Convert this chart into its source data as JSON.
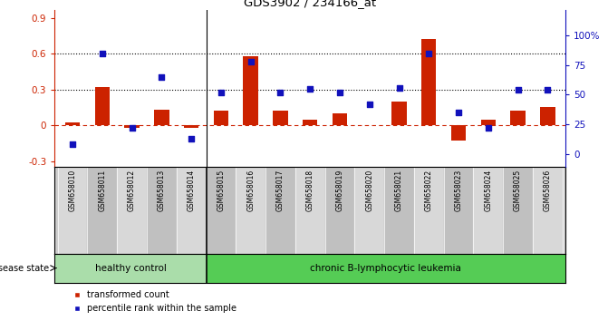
{
  "title": "GDS3902 / 234166_at",
  "samples": [
    "GSM658010",
    "GSM658011",
    "GSM658012",
    "GSM658013",
    "GSM658014",
    "GSM658015",
    "GSM658016",
    "GSM658017",
    "GSM658018",
    "GSM658019",
    "GSM658020",
    "GSM658021",
    "GSM658022",
    "GSM658023",
    "GSM658024",
    "GSM658025",
    "GSM658026"
  ],
  "bar_values": [
    0.02,
    0.32,
    -0.02,
    0.13,
    -0.02,
    0.12,
    0.58,
    0.12,
    0.05,
    0.1,
    0.0,
    0.2,
    0.72,
    -0.13,
    0.05,
    0.12,
    0.15
  ],
  "dot_values": [
    0.08,
    0.85,
    0.22,
    0.65,
    0.13,
    0.52,
    0.78,
    0.52,
    0.55,
    0.52,
    0.42,
    0.56,
    0.85,
    0.35,
    0.22,
    0.54,
    0.54
  ],
  "bar_color": "#cc2200",
  "dot_color": "#1111bb",
  "ylim_left": [
    -0.35,
    0.97
  ],
  "ylim_right": [
    -0.109375,
    1.21875
  ],
  "yticks_left": [
    -0.3,
    0.0,
    0.3,
    0.6,
    0.9
  ],
  "ytick_labels_left": [
    "-0.3",
    "0",
    "0.3",
    "0.6",
    "0.9"
  ],
  "yticks_right": [
    0.0,
    0.25,
    0.5,
    0.75,
    1.0
  ],
  "ytick_labels_right": [
    "0",
    "25",
    "50",
    "75",
    "100%"
  ],
  "hline_value": 0.0,
  "dotted_lines": [
    0.3,
    0.6
  ],
  "healthy_count": 5,
  "healthy_label": "healthy control",
  "leukemia_label": "chronic B-lymphocytic leukemia",
  "disease_state_label": "disease state",
  "legend_bar": "transformed count",
  "legend_dot": "percentile rank within the sample",
  "healthy_color": "#aaddaa",
  "leukemia_color": "#55cc55",
  "bar_width": 0.5,
  "background_color": "#ffffff",
  "plot_bg_color": "#ffffff",
  "xtick_bg_even": "#d8d8d8",
  "xtick_bg_odd": "#c0c0c0"
}
